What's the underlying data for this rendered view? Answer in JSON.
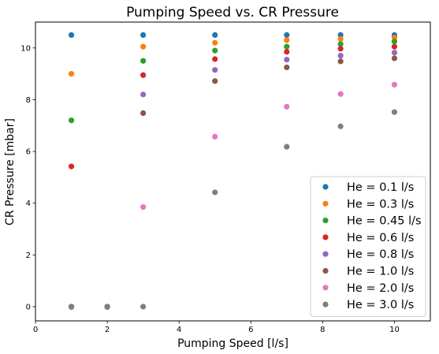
{
  "chart_data": {
    "type": "scatter",
    "title": "Pumping Speed vs. CR Pressure",
    "xlabel": "Pumping Speed [l/s]",
    "ylabel": "CR Pressure [mbar]",
    "xlim": [
      0,
      11
    ],
    "ylim": [
      -0.55,
      11
    ],
    "xticks": [
      0,
      2,
      4,
      6,
      8,
      10
    ],
    "yticks": [
      0,
      2,
      4,
      6,
      8,
      10
    ],
    "grid": false,
    "legend_position": "bottom-right",
    "series": [
      {
        "name": "He = 0.1 l/s",
        "color": "#1f77b4",
        "points": [
          [
            1,
            10.5
          ],
          [
            3,
            10.5
          ],
          [
            5,
            10.5
          ],
          [
            7,
            10.5
          ],
          [
            8.5,
            10.5
          ],
          [
            10,
            10.5
          ]
        ]
      },
      {
        "name": "He = 0.3 l/s",
        "color": "#ff7f0e",
        "points": [
          [
            1,
            9.0
          ],
          [
            3,
            10.05
          ],
          [
            5,
            10.2
          ],
          [
            7,
            10.3
          ],
          [
            8.5,
            10.35
          ],
          [
            10,
            10.4
          ]
        ]
      },
      {
        "name": "He = 0.45 l/s",
        "color": "#2ca02c",
        "points": [
          [
            1,
            7.2
          ],
          [
            3,
            9.5
          ],
          [
            5,
            9.9
          ],
          [
            7,
            10.05
          ],
          [
            8.5,
            10.15
          ],
          [
            10,
            10.25
          ]
        ]
      },
      {
        "name": "He = 0.6 l/s",
        "color": "#d62728",
        "points": [
          [
            1,
            5.42
          ],
          [
            3,
            8.95
          ],
          [
            5,
            9.57
          ],
          [
            7,
            9.85
          ],
          [
            8.5,
            9.97
          ],
          [
            10,
            10.05
          ]
        ]
      },
      {
        "name": "He = 0.8 l/s",
        "color": "#9467bd",
        "points": [
          [
            1,
            0.0
          ],
          [
            2,
            0.0
          ],
          [
            3,
            8.2
          ],
          [
            5,
            9.15
          ],
          [
            7,
            9.55
          ],
          [
            8.5,
            9.7
          ],
          [
            10,
            9.82
          ]
        ]
      },
      {
        "name": "He = 1.0 l/s",
        "color": "#8c564b",
        "points": [
          [
            1,
            0.0
          ],
          [
            2,
            0.0
          ],
          [
            3,
            7.48
          ],
          [
            5,
            8.72
          ],
          [
            7,
            9.25
          ],
          [
            8.5,
            9.48
          ],
          [
            10,
            9.6
          ]
        ]
      },
      {
        "name": "He = 2.0 l/s",
        "color": "#e377c2",
        "points": [
          [
            1,
            -0.02
          ],
          [
            2,
            -0.02
          ],
          [
            3,
            3.85
          ],
          [
            5,
            6.57
          ],
          [
            7,
            7.73
          ],
          [
            8.5,
            8.22
          ],
          [
            10,
            8.58
          ]
        ]
      },
      {
        "name": "He = 3.0 l/s",
        "color": "#7f7f7f",
        "points": [
          [
            1,
            0.0
          ],
          [
            2,
            0.0
          ],
          [
            3,
            0.0
          ],
          [
            5,
            4.42
          ],
          [
            7,
            6.18
          ],
          [
            8.5,
            6.97
          ],
          [
            10,
            7.52
          ]
        ]
      }
    ]
  }
}
